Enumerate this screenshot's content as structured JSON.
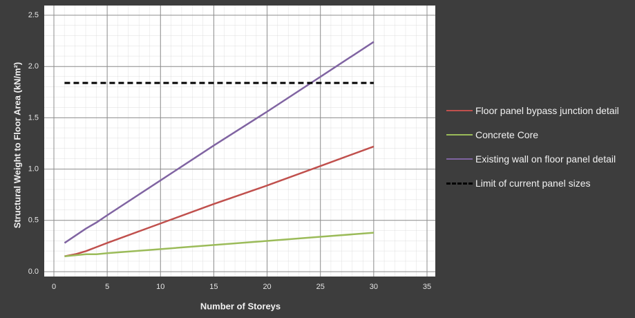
{
  "chart_data": {
    "type": "line",
    "x_label": "Number of Storeys",
    "y_label": "Structural Weight to Floor Area  (kN/m²)",
    "xlim": [
      0,
      35
    ],
    "xticks": [
      0,
      5,
      10,
      15,
      20,
      25,
      30,
      35
    ],
    "ylim": [
      0,
      2.5
    ],
    "yticks": [
      {
        "value": 0,
        "label": "0.0"
      },
      0.5,
      {
        "value": 1,
        "label": "1.0"
      },
      1.5,
      {
        "value": 2,
        "label": "2.0"
      },
      2.5
    ],
    "grid": true,
    "legend": "right",
    "series": [
      {
        "name": "Floor panel bypass junction detail",
        "color": "#c0504d",
        "dash": false,
        "x": [
          1,
          2,
          3,
          4,
          5,
          10,
          15,
          20,
          25,
          30
        ],
        "values": [
          0.15,
          0.17,
          0.2,
          0.24,
          0.28,
          0.47,
          0.66,
          0.84,
          1.03,
          1.22
        ]
      },
      {
        "name": "Concrete Core",
        "color": "#9bbb59",
        "dash": false,
        "x": [
          1,
          2,
          3,
          4,
          5,
          10,
          15,
          20,
          25,
          30
        ],
        "values": [
          0.15,
          0.16,
          0.17,
          0.17,
          0.18,
          0.22,
          0.26,
          0.3,
          0.34,
          0.38
        ]
      },
      {
        "name": "Existing wall on floor panel detail",
        "color": "#8064a2",
        "dash": false,
        "x": [
          1,
          2,
          3,
          4,
          5,
          10,
          15,
          20,
          25,
          30
        ],
        "values": [
          0.28,
          0.35,
          0.42,
          0.48,
          0.55,
          0.89,
          1.23,
          1.56,
          1.9,
          2.24
        ]
      },
      {
        "name": "Limit of current panel sizes",
        "color": "#000000",
        "dash": true,
        "x": [
          1,
          30
        ],
        "values": [
          1.84,
          1.84
        ]
      }
    ]
  }
}
